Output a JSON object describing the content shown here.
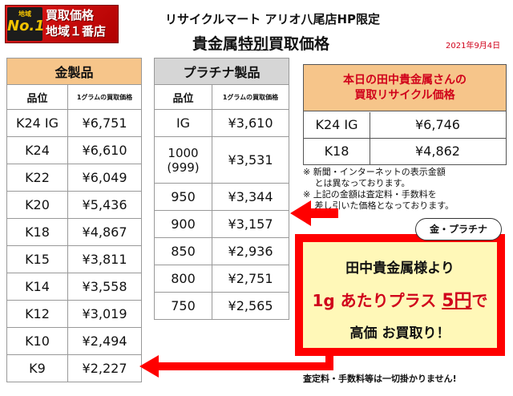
{
  "badge": {
    "small_top": "地域",
    "no1": "No.1",
    "line1": "買取価格",
    "line2": "地域１番店"
  },
  "header": {
    "store_line": "リサイクルマート アリオ八尾店HP限定",
    "title_prefix": "貴金属",
    "title_underlined": "特別",
    "title_suffix": "買取価格",
    "date": "2021年9月4日"
  },
  "gold_table": {
    "title": "金製品",
    "col_grade": "品位",
    "col_price": "1グラムの買取価格",
    "rows": [
      {
        "grade": "K24 IG",
        "price": "¥6,751"
      },
      {
        "grade": "K24",
        "price": "¥6,610"
      },
      {
        "grade": "K22",
        "price": "¥6,049"
      },
      {
        "grade": "K20",
        "price": "¥5,436"
      },
      {
        "grade": "K18",
        "price": "¥4,867"
      },
      {
        "grade": "K15",
        "price": "¥3,811"
      },
      {
        "grade": "K14",
        "price": "¥3,558"
      },
      {
        "grade": "K12",
        "price": "¥3,019"
      },
      {
        "grade": "K10",
        "price": "¥2,494"
      },
      {
        "grade": "K9",
        "price": "¥2,227"
      }
    ]
  },
  "platinum_table": {
    "title": "プラチナ製品",
    "col_grade": "品位",
    "col_price": "1グラムの買取価格",
    "rows": [
      {
        "grade": "IG",
        "price": "¥3,610"
      },
      {
        "grade": "1000",
        "grade2": "(999)",
        "price": "¥3,531"
      },
      {
        "grade": "950",
        "price": "¥3,344"
      },
      {
        "grade": "900",
        "price": "¥3,157"
      },
      {
        "grade": "850",
        "price": "¥2,936"
      },
      {
        "grade": "800",
        "price": "¥2,751"
      },
      {
        "grade": "750",
        "price": "¥2,565"
      }
    ]
  },
  "tanaka_box": {
    "line1": "本日の田中貴金属さんの",
    "line2": "買取リサイクル価格",
    "rows": [
      {
        "grade": "K24 IG",
        "price": "¥6,746"
      },
      {
        "grade": "K18",
        "price": "¥4,862"
      }
    ]
  },
  "notes": [
    "※ 新聞・インターネットの表示金額",
    "　 とは異なっております。",
    "※ 上記の金額は査定料・手数料を",
    "　 差し引いた価格となっております。"
  ],
  "promo": {
    "bubble": "金・プラチナ",
    "line1": "田中貴金属様より",
    "line2_a": "1g あたりプラス ",
    "line2_b": "5円",
    "line2_c": "で",
    "line3": "高価 お買取り！"
  },
  "footer": "査定料・手数料等は一切掛かりません!",
  "colors": {
    "accent_red": "#ff0000",
    "gold_header": "#f6c58a",
    "platinum_header": "#d6d6d6",
    "promo_bg": "#fff8b8"
  }
}
